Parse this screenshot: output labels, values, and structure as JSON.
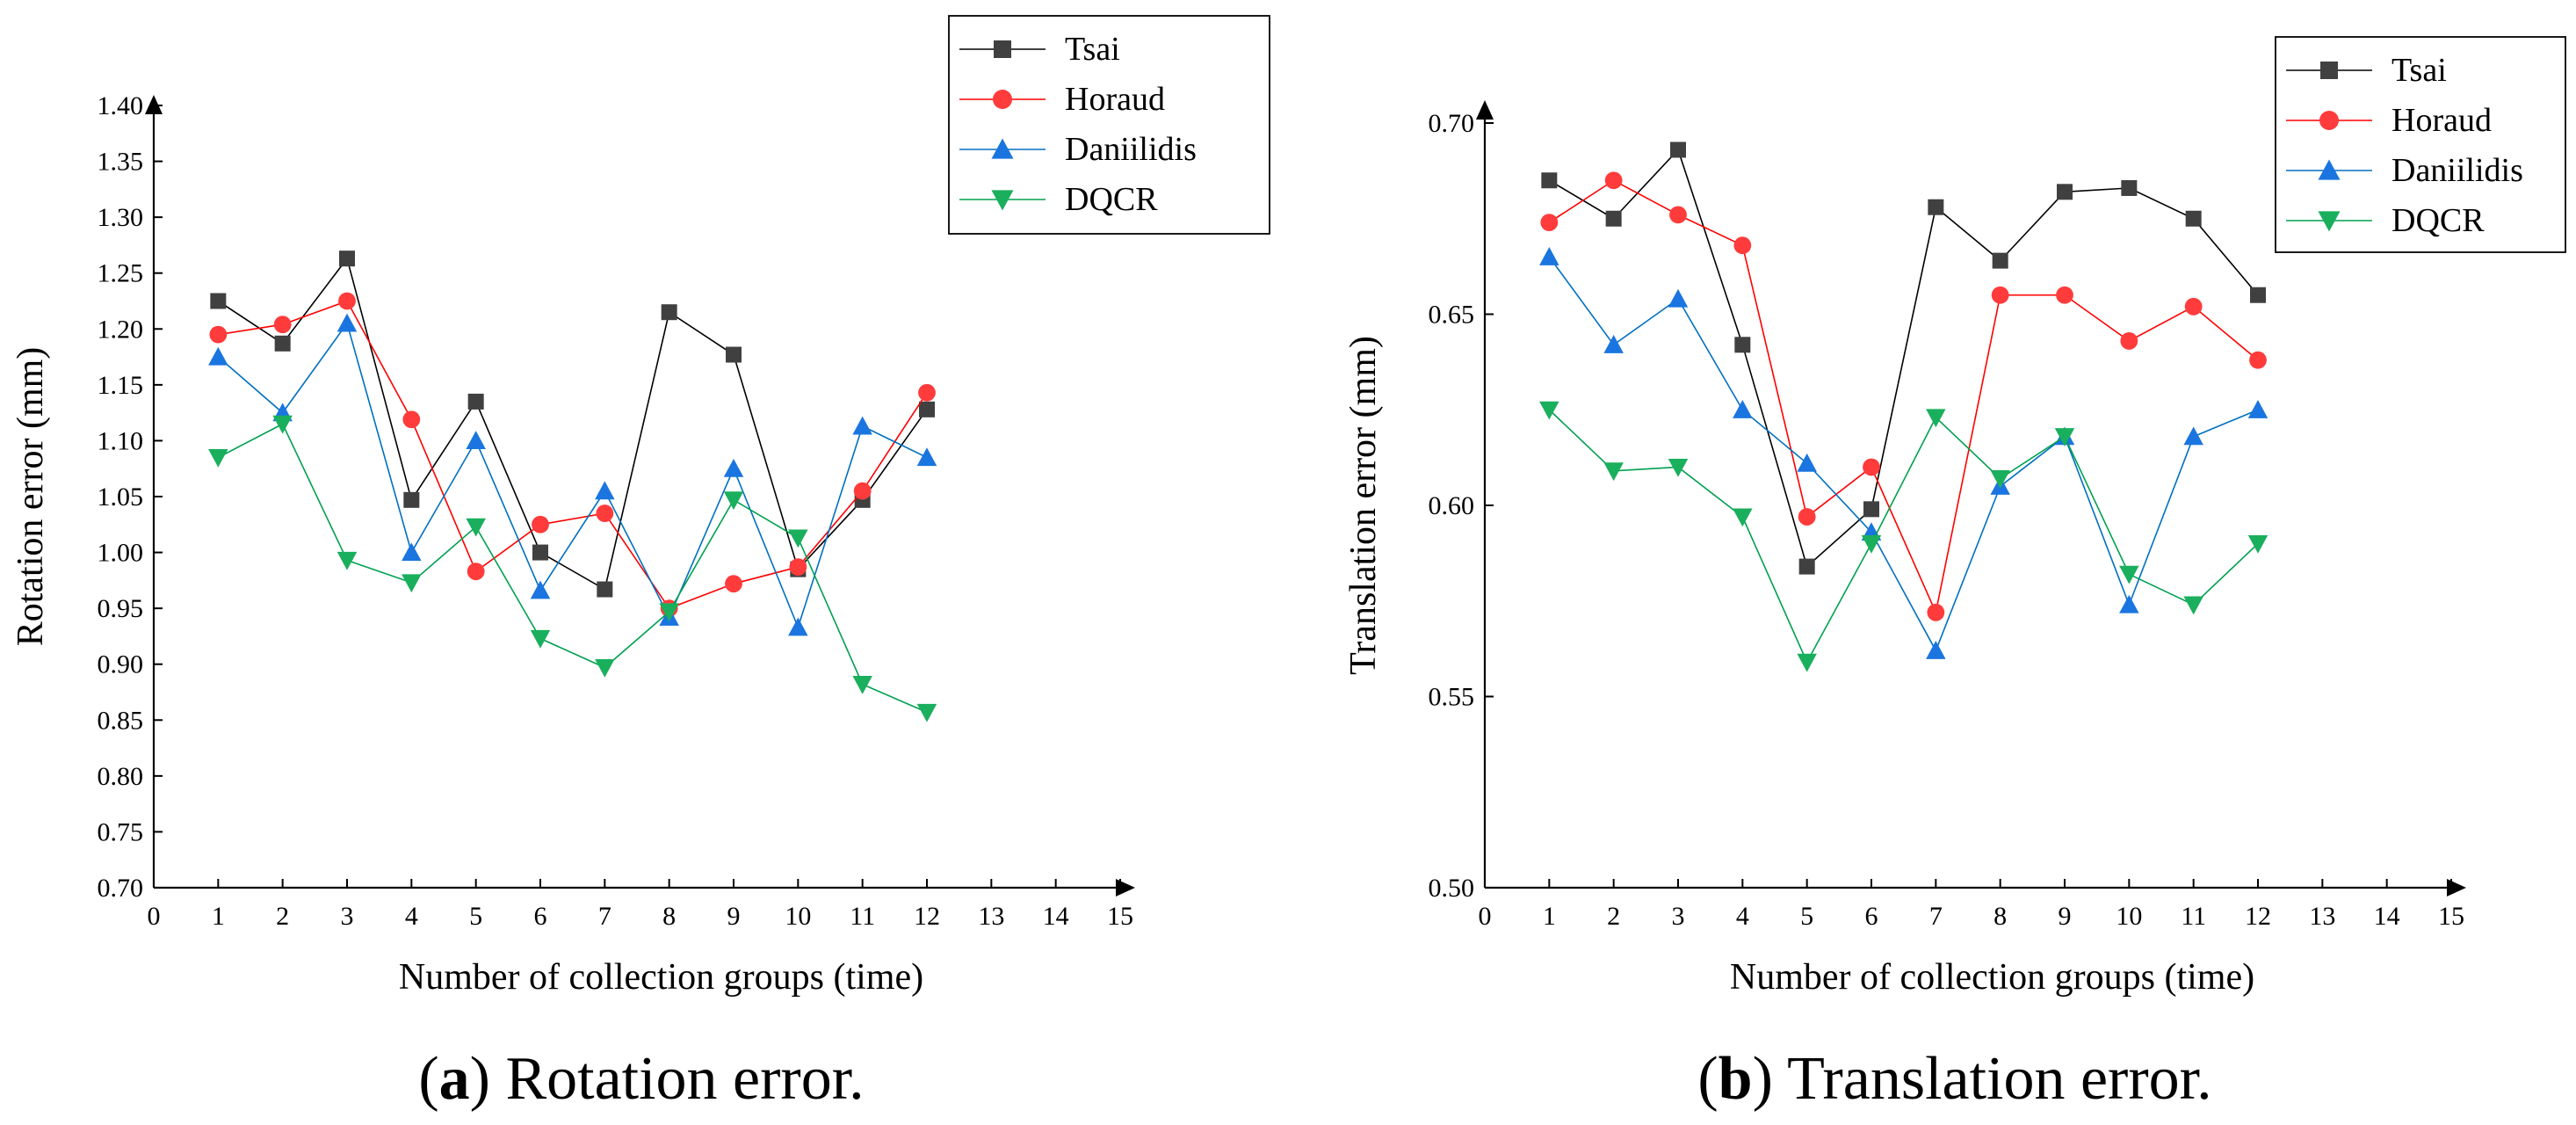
{
  "series_styles": [
    {
      "name": "Tsai",
      "color": "#000000",
      "marker": "square-marker-icon",
      "marker_fill": "#404040"
    },
    {
      "name": "Horaud",
      "color": "#ff0000",
      "marker": "circle-marker-icon",
      "marker_fill": "#ff3b3b"
    },
    {
      "name": "Daniilidis",
      "color": "#0070c0",
      "marker": "triangle-up-marker-icon",
      "marker_fill": "#1a75e0"
    },
    {
      "name": "DQCR",
      "color": "#00a050",
      "marker": "triangle-down-marker-icon",
      "marker_fill": "#1aaf5d"
    }
  ],
  "chart_data": [
    {
      "type": "line",
      "panel_label": "a",
      "caption": "Rotation error.",
      "xlabel": "Number of collection groups (time)",
      "ylabel": "Rotation error (mm)",
      "xlim": [
        0,
        15
      ],
      "ylim": [
        0.7,
        1.4
      ],
      "xticks": [
        "0",
        "1",
        "2",
        "3",
        "4",
        "5",
        "6",
        "7",
        "8",
        "9",
        "10",
        "11",
        "12",
        "13",
        "14",
        "15"
      ],
      "yticks": [
        "0.70",
        "0.75",
        "0.80",
        "0.85",
        "0.90",
        "0.95",
        "1.00",
        "1.05",
        "1.10",
        "1.15",
        "1.20",
        "1.25",
        "1.30",
        "1.35",
        "1.40"
      ],
      "x": [
        1,
        2,
        3,
        4,
        5,
        6,
        7,
        8,
        9,
        10,
        11,
        12
      ],
      "legend": [
        "Tsai",
        "Horaud",
        "Daniilidis",
        "DQCR"
      ],
      "series": [
        {
          "name": "Tsai",
          "values": [
            1.225,
            1.187,
            1.263,
            1.047,
            1.135,
            1.0,
            0.967,
            1.215,
            1.177,
            0.985,
            1.047,
            1.128
          ]
        },
        {
          "name": "Horaud",
          "values": [
            1.195,
            1.204,
            1.225,
            1.119,
            0.983,
            1.025,
            1.035,
            0.95,
            0.972,
            0.987,
            1.055,
            1.143
          ]
        },
        {
          "name": "Daniilidis",
          "values": [
            1.175,
            1.125,
            1.205,
            1.0,
            1.1,
            0.966,
            1.055,
            0.942,
            1.075,
            0.933,
            1.113,
            1.085
          ]
        },
        {
          "name": "DQCR",
          "values": [
            1.085,
            1.115,
            0.993,
            0.973,
            1.023,
            0.923,
            0.897,
            0.947,
            1.047,
            1.013,
            0.882,
            0.857
          ]
        }
      ]
    },
    {
      "type": "line",
      "panel_label": "b",
      "caption": "Translation error.",
      "xlabel": "Number of collection groups (time)",
      "ylabel": "Translation error (mm)",
      "xlim": [
        0,
        15
      ],
      "ylim": [
        0.5,
        0.7
      ],
      "xticks": [
        "0",
        "1",
        "2",
        "3",
        "4",
        "5",
        "6",
        "7",
        "8",
        "9",
        "10",
        "11",
        "12",
        "13",
        "14",
        "15"
      ],
      "yticks": [
        "0.50",
        "0.55",
        "0.60",
        "0.65",
        "0.70"
      ],
      "x": [
        1,
        2,
        3,
        4,
        5,
        6,
        7,
        8,
        9,
        10,
        11,
        12
      ],
      "legend": [
        "Tsai",
        "Horaud",
        "Daniilidis",
        "DQCR"
      ],
      "series": [
        {
          "name": "Tsai",
          "values": [
            0.685,
            0.675,
            0.693,
            0.642,
            0.584,
            0.599,
            0.678,
            0.664,
            0.682,
            0.683,
            0.675,
            0.655
          ]
        },
        {
          "name": "Horaud",
          "values": [
            0.674,
            0.685,
            0.676,
            0.668,
            0.597,
            0.61,
            0.572,
            0.655,
            0.655,
            0.643,
            0.652,
            0.638
          ]
        },
        {
          "name": "Daniilidis",
          "values": [
            0.665,
            0.642,
            0.654,
            0.625,
            0.611,
            0.593,
            0.562,
            0.605,
            0.618,
            0.574,
            0.618,
            0.625
          ]
        },
        {
          "name": "DQCR",
          "values": [
            0.625,
            0.609,
            0.61,
            0.597,
            0.559,
            0.59,
            0.623,
            0.607,
            0.618,
            0.582,
            0.574,
            0.59
          ]
        }
      ]
    }
  ]
}
